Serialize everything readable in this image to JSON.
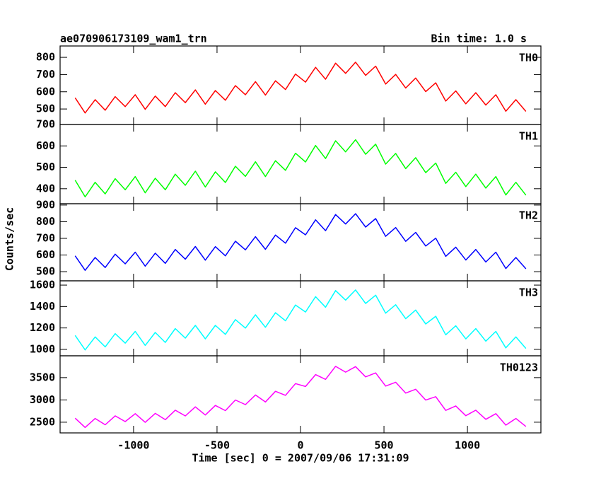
{
  "chart_data": {
    "type": "line",
    "title": "ae070906173109_wam1_trn",
    "subtitle": "Bin time: 1.0 s",
    "xlabel": "Time [sec] 0 = 2007/09/06 17:31:09",
    "ylabel": "Counts/sec",
    "xlim": [
      -1440,
      1440
    ],
    "xticks": [
      -1000,
      -500,
      0,
      500,
      1000
    ],
    "x": [
      -1350,
      -1290,
      -1230,
      -1170,
      -1110,
      -1050,
      -990,
      -930,
      -870,
      -810,
      -750,
      -690,
      -630,
      -570,
      -510,
      -450,
      -390,
      -330,
      -270,
      -210,
      -150,
      -90,
      -30,
      30,
      90,
      150,
      210,
      270,
      330,
      390,
      450,
      510,
      570,
      630,
      690,
      750,
      810,
      870,
      930,
      990,
      1050,
      1110,
      1170,
      1230,
      1290,
      1350
    ],
    "series": [
      {
        "name": "TH0",
        "color": "#ff0000",
        "ylim": [
          410,
          866
        ],
        "yticks": [
          500,
          600,
          700,
          800
        ],
        "values": [
          565,
          477,
          554,
          493,
          572,
          514,
          583,
          498,
          575,
          514,
          595,
          537,
          611,
          528,
          607,
          551,
          636,
          583,
          659,
          581,
          664,
          613,
          703,
          656,
          742,
          673,
          766,
          707,
          772,
          695,
          749,
          645,
          701,
          622,
          680,
          601,
          652,
          546,
          605,
          530,
          595,
          523,
          583,
          487,
          554,
          486
        ]
      },
      {
        "name": "TH1",
        "color": "#00ff00",
        "ylim": [
          330,
          700
        ],
        "yticks": [
          400,
          500,
          600,
          700
        ],
        "values": [
          440,
          362,
          430,
          376,
          447,
          395,
          457,
          381,
          449,
          395,
          468,
          416,
          482,
          408,
          479,
          429,
          505,
          458,
          526,
          457,
          531,
          486,
          566,
          525,
          602,
          541,
          624,
          572,
          629,
          561,
          608,
          515,
          565,
          494,
          545,
          475,
          520,
          425,
          477,
          410,
          468,
          403,
          457,
          371,
          430,
          370
        ]
      },
      {
        "name": "TH2",
        "color": "#0000ff",
        "ylim": [
          445,
          908
        ],
        "yticks": [
          500,
          600,
          700,
          800,
          900
        ],
        "values": [
          595,
          508,
          585,
          525,
          605,
          547,
          617,
          533,
          611,
          550,
          633,
          575,
          651,
          569,
          650,
          595,
          683,
          631,
          710,
          634,
          720,
          671,
          764,
          721,
          811,
          746,
          843,
          786,
          848,
          768,
          819,
          712,
          765,
          682,
          736,
          654,
          701,
          592,
          647,
          570,
          633,
          558,
          617,
          519,
          585,
          517
        ]
      },
      {
        "name": "TH3",
        "color": "#00ffff",
        "ylim": [
          940,
          1640
        ],
        "yticks": [
          1000,
          1200,
          1400,
          1600
        ],
        "values": [
          1130,
          995,
          1116,
          1023,
          1147,
          1058,
          1168,
          1037,
          1158,
          1065,
          1194,
          1105,
          1224,
          1098,
          1224,
          1140,
          1278,
          1199,
          1323,
          1206,
          1342,
          1267,
          1414,
          1349,
          1492,
          1394,
          1549,
          1460,
          1555,
          1429,
          1506,
          1338,
          1417,
          1286,
          1367,
          1237,
          1309,
          1136,
          1220,
          1098,
          1194,
          1077,
          1168,
          1014,
          1116,
          1009
        ]
      },
      {
        "name": "TH0123",
        "color": "#ff00ff",
        "ylim": [
          2260,
          3990
        ],
        "yticks": [
          2500,
          3000,
          3500
        ],
        "values": [
          2590,
          2383,
          2584,
          2443,
          2643,
          2514,
          2692,
          2497,
          2698,
          2557,
          2770,
          2641,
          2844,
          2662,
          2876,
          2760,
          2998,
          2895,
          3111,
          2954,
          3194,
          3103,
          3366,
          3301,
          3568,
          3462,
          3753,
          3624,
          3747,
          3517,
          3606,
          3310,
          3397,
          3154,
          3239,
          2997,
          3073,
          2764,
          2864,
          2646,
          2770,
          2565,
          2692,
          2434,
          2584,
          2405
        ]
      }
    ]
  }
}
